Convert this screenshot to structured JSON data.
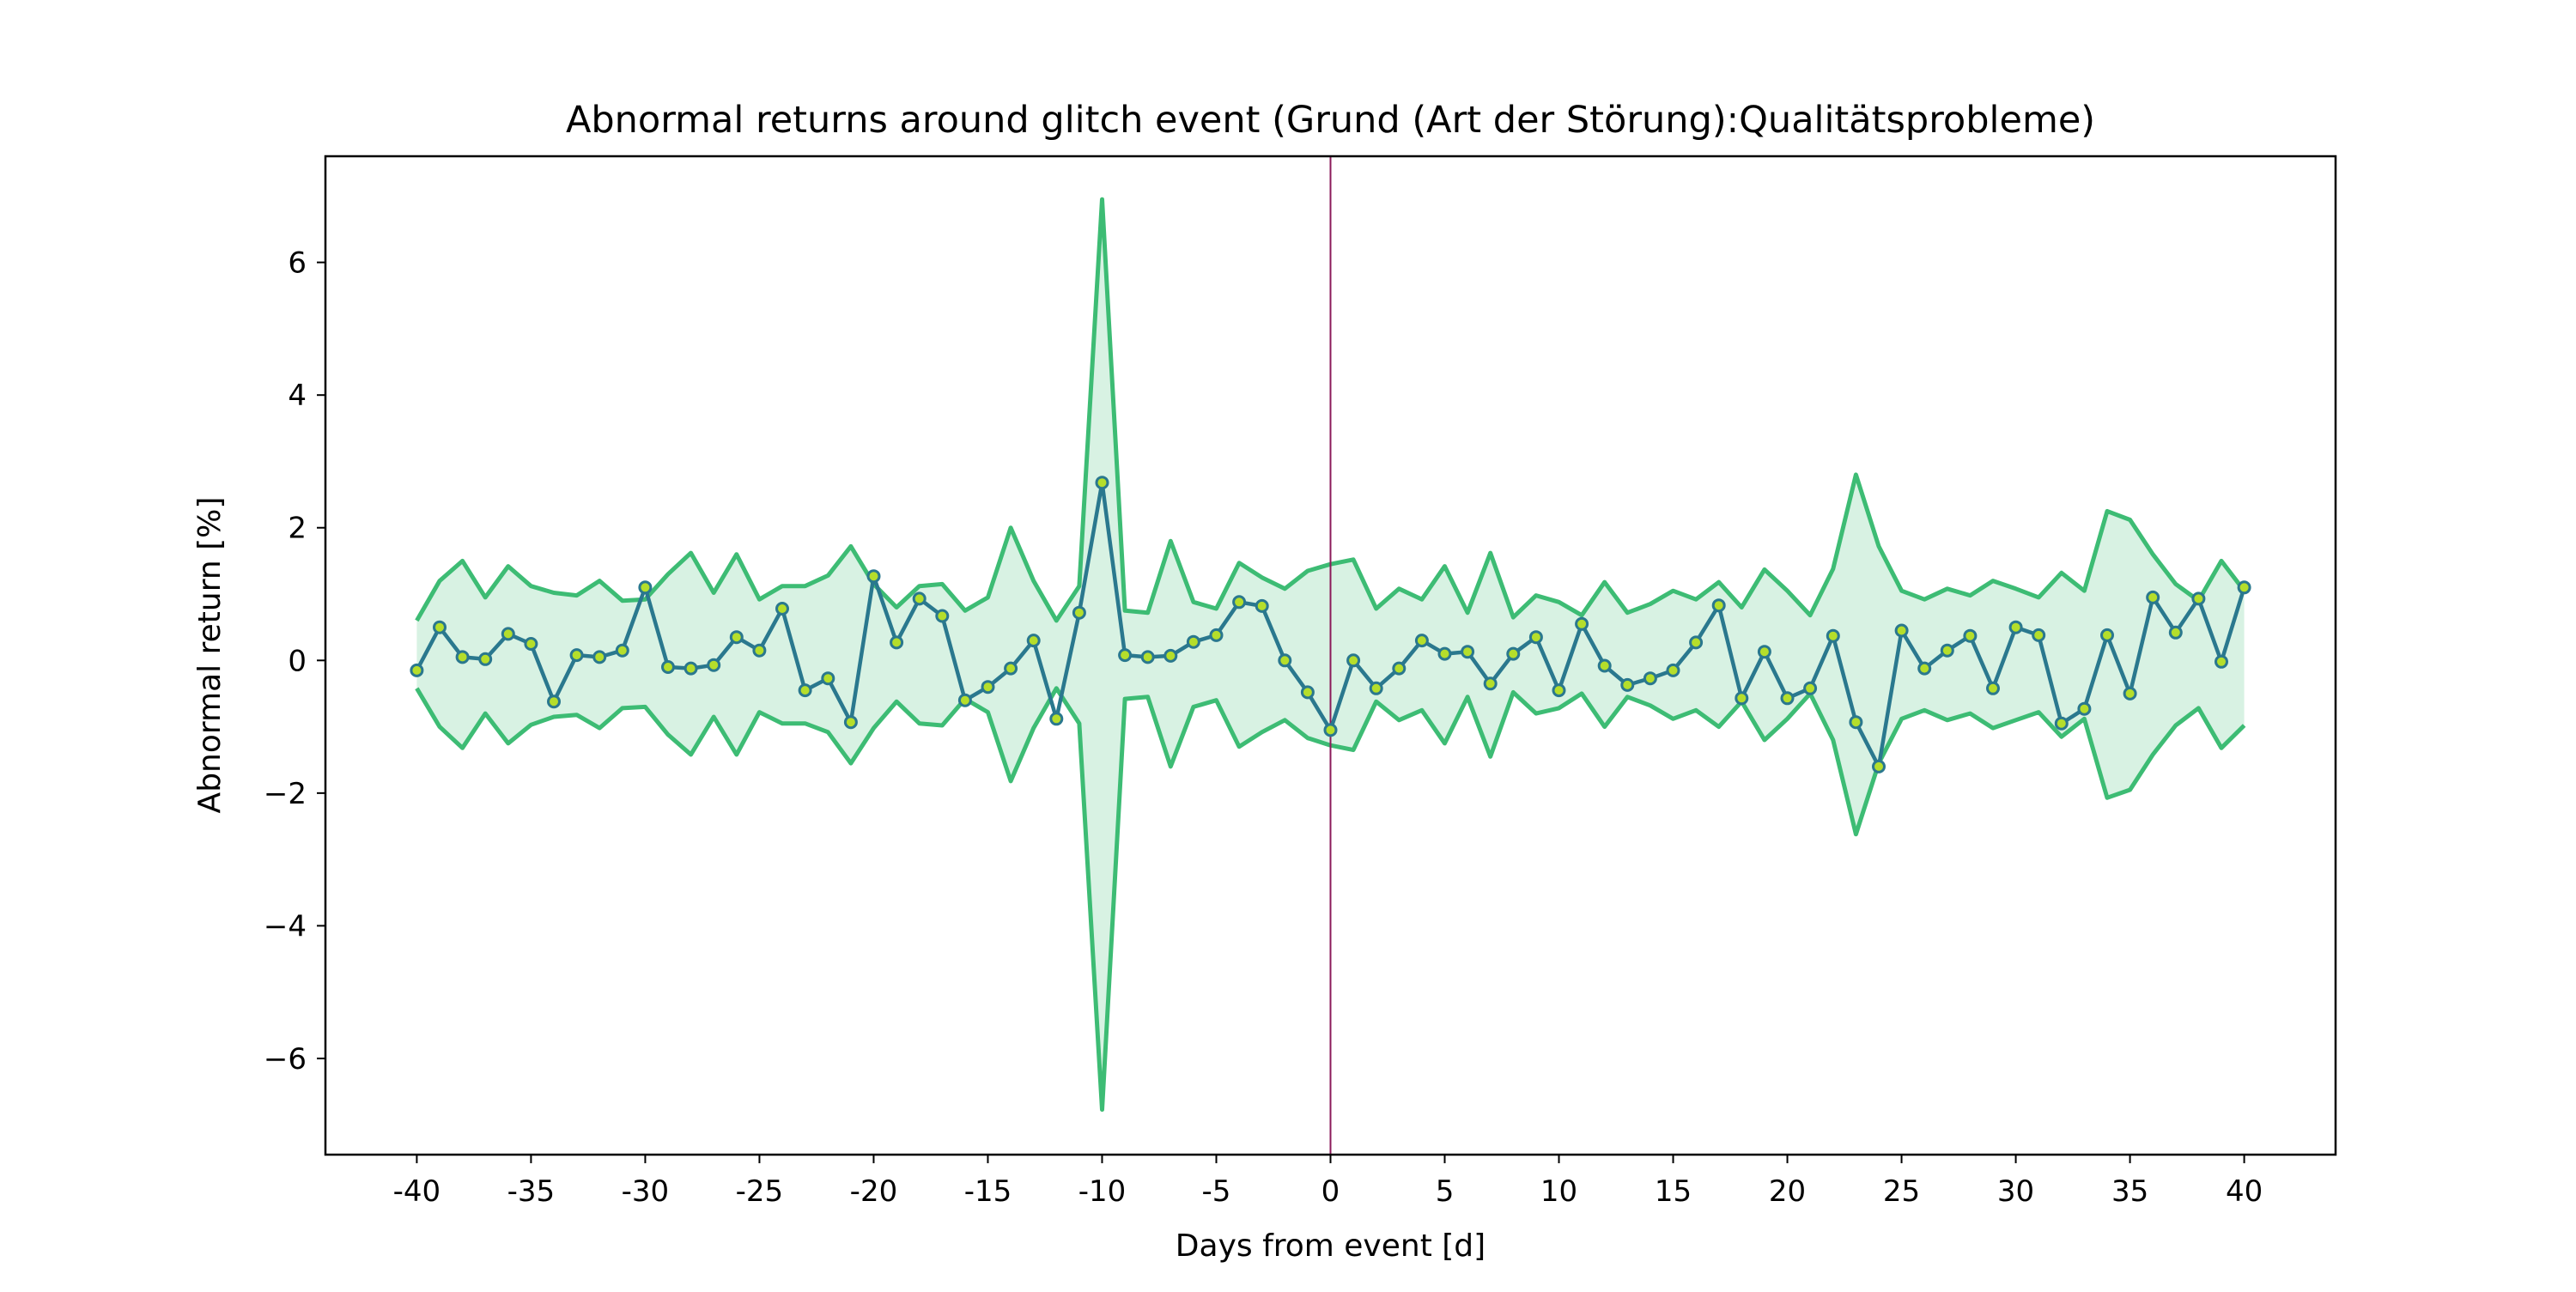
{
  "chart_data": {
    "type": "line",
    "title": "Abnormal returns around glitch event (Grund (Art der Störung):Qualitätsprobleme)",
    "xlabel": "Days from event [d]",
    "ylabel": "Abnormal return [%]",
    "xlim": [
      -44,
      44
    ],
    "ylim": [
      -7.45,
      7.6
    ],
    "x_ticks": [
      -40,
      -35,
      -30,
      -25,
      -20,
      -15,
      -10,
      -5,
      0,
      5,
      10,
      15,
      20,
      25,
      30,
      35,
      40
    ],
    "x_tick_labels": [
      "-40",
      "-35",
      "-30",
      "-25",
      "-20",
      "-15",
      "-10",
      "-5",
      "0",
      "5",
      "10",
      "15",
      "20",
      "25",
      "30",
      "35",
      "40"
    ],
    "y_ticks": [
      -6,
      -4,
      -2,
      0,
      2,
      4,
      6
    ],
    "y_tick_labels": [
      "−6",
      "−4",
      "−2",
      "0",
      "2",
      "4",
      "6"
    ],
    "event_line_x": 0,
    "grid": false,
    "colors": {
      "mean_line": "#2a788e",
      "marker_face": "#b5de2b",
      "band_edge": "#3dbc74",
      "band_fill": "#d8f2e3",
      "event_line": "#8b1a5a"
    },
    "x": [
      -40,
      -39,
      -38,
      -37,
      -36,
      -35,
      -34,
      -33,
      -32,
      -31,
      -30,
      -29,
      -28,
      -27,
      -26,
      -25,
      -24,
      -23,
      -22,
      -21,
      -20,
      -19,
      -18,
      -17,
      -16,
      -15,
      -14,
      -13,
      -12,
      -11,
      -10,
      -9,
      -8,
      -7,
      -6,
      -5,
      -4,
      -3,
      -2,
      -1,
      0,
      1,
      2,
      3,
      4,
      5,
      6,
      7,
      8,
      9,
      10,
      11,
      12,
      13,
      14,
      15,
      16,
      17,
      18,
      19,
      20,
      21,
      22,
      23,
      24,
      25,
      26,
      27,
      28,
      29,
      30,
      31,
      32,
      33,
      34,
      35,
      36,
      37,
      38,
      39,
      40
    ],
    "series": [
      {
        "role": "mean",
        "values": [
          -0.15,
          0.5,
          0.05,
          0.02,
          0.4,
          0.25,
          -0.62,
          0.08,
          0.05,
          0.15,
          1.1,
          -0.1,
          -0.12,
          -0.07,
          0.35,
          0.15,
          0.78,
          -0.45,
          -0.27,
          -0.93,
          1.27,
          0.27,
          0.93,
          0.67,
          -0.6,
          -0.4,
          -0.12,
          0.3,
          -0.88,
          0.72,
          2.68,
          0.08,
          0.05,
          0.07,
          0.28,
          0.38,
          0.88,
          0.82,
          0.0,
          -0.48,
          -1.05,
          0.0,
          -0.42,
          -0.12,
          0.3,
          0.1,
          0.13,
          -0.35,
          0.1,
          0.35,
          -0.45,
          0.55,
          -0.08,
          -0.37,
          -0.27,
          -0.15,
          0.27,
          0.83,
          -0.57,
          0.13,
          -0.57,
          -0.42,
          0.37,
          -0.93,
          -1.6,
          0.45,
          -0.12,
          0.15,
          0.37,
          -0.42,
          0.5,
          0.38,
          -0.95,
          -0.73,
          0.38,
          -0.5,
          0.95,
          0.42,
          0.93,
          -0.02,
          1.1
        ]
      },
      {
        "role": "upper",
        "values": [
          0.6,
          1.2,
          1.5,
          0.95,
          1.42,
          1.12,
          1.02,
          0.98,
          1.2,
          0.9,
          0.92,
          1.3,
          1.62,
          1.02,
          1.6,
          0.92,
          1.12,
          1.12,
          1.28,
          1.72,
          1.15,
          0.8,
          1.12,
          1.15,
          0.75,
          0.95,
          2.0,
          1.2,
          0.6,
          1.12,
          6.95,
          0.75,
          0.72,
          1.8,
          0.88,
          0.78,
          1.47,
          1.25,
          1.08,
          1.35,
          1.45,
          1.52,
          0.78,
          1.08,
          0.92,
          1.42,
          0.72,
          1.62,
          0.65,
          0.98,
          0.88,
          0.68,
          1.18,
          0.72,
          0.85,
          1.05,
          0.92,
          1.18,
          0.8,
          1.37,
          1.05,
          0.68,
          1.38,
          2.8,
          1.72,
          1.05,
          0.92,
          1.08,
          0.98,
          1.2,
          1.08,
          0.95,
          1.32,
          1.05,
          2.25,
          2.12,
          1.6,
          1.15,
          0.9,
          1.5,
          1.05
        ]
      },
      {
        "role": "lower",
        "values": [
          -0.42,
          -1.0,
          -1.32,
          -0.8,
          -1.25,
          -0.97,
          -0.85,
          -0.82,
          -1.02,
          -0.72,
          -0.7,
          -1.12,
          -1.42,
          -0.85,
          -1.42,
          -0.78,
          -0.95,
          -0.95,
          -1.08,
          -1.55,
          -1.02,
          -0.62,
          -0.95,
          -0.98,
          -0.58,
          -0.78,
          -1.82,
          -1.02,
          -0.42,
          -0.95,
          -6.77,
          -0.58,
          -0.55,
          -1.6,
          -0.7,
          -0.6,
          -1.3,
          -1.08,
          -0.9,
          -1.17,
          -1.28,
          -1.35,
          -0.62,
          -0.9,
          -0.75,
          -1.25,
          -0.55,
          -1.45,
          -0.48,
          -0.8,
          -0.72,
          -0.5,
          -1.0,
          -0.55,
          -0.68,
          -0.88,
          -0.75,
          -1.0,
          -0.62,
          -1.2,
          -0.88,
          -0.5,
          -1.2,
          -2.62,
          -1.55,
          -0.88,
          -0.75,
          -0.9,
          -0.8,
          -1.02,
          -0.9,
          -0.78,
          -1.15,
          -0.88,
          -2.07,
          -1.95,
          -1.42,
          -0.98,
          -0.72,
          -1.32,
          -0.98
        ]
      }
    ]
  }
}
